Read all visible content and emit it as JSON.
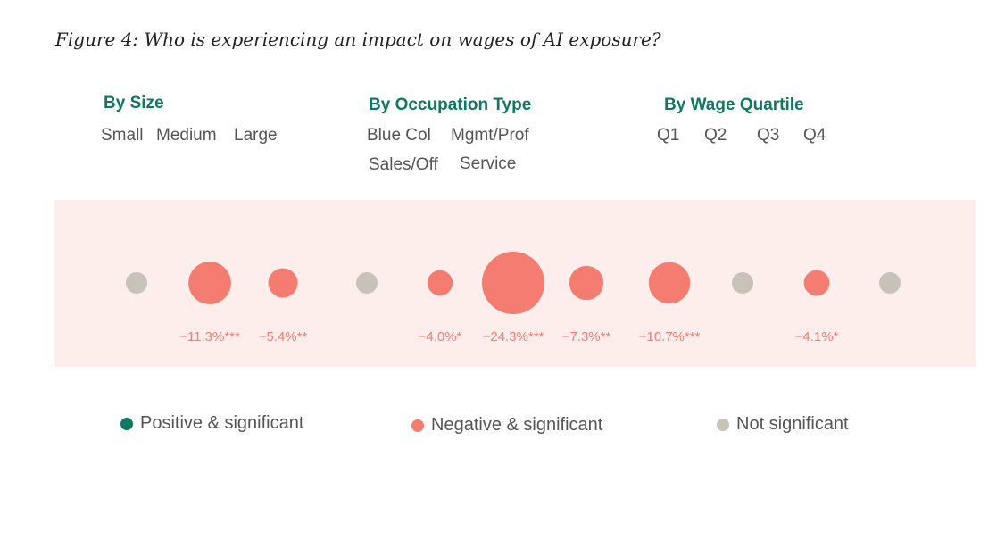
{
  "figure_title": "Figure 4: Who is experiencing an impact on wages of AI exposure?",
  "groups": [
    {
      "title": "By Size",
      "categories": [
        "Small",
        "Medium",
        "Large"
      ]
    },
    {
      "title": "By Occupation Type",
      "categories": [
        "Blue Col",
        "Mgmt/Prof",
        "Sales/Off",
        "Service"
      ]
    },
    {
      "title": "By Wage Quartile",
      "categories": [
        "Q1",
        "Q2",
        "Q3",
        "Q4"
      ]
    }
  ],
  "legend": {
    "positive": "Positive & significant",
    "negative": "Negative & significant",
    "not_significant": "Not significant"
  },
  "colors": {
    "positive": "#0f7a64",
    "negative": "#f47c70",
    "not_significant": "#c9c2b8",
    "band": "#fdeeec",
    "title_green": "#0f7a64"
  },
  "chart_data": {
    "type": "scatter",
    "points": [
      {
        "group": "By Size",
        "category": "Small",
        "status": "not_significant",
        "value": null,
        "label": ""
      },
      {
        "group": "By Size",
        "category": "Medium",
        "status": "negative",
        "value": -11.3,
        "label": "−11.3%***"
      },
      {
        "group": "By Size",
        "category": "Large",
        "status": "negative",
        "value": -5.4,
        "label": "−5.4%**"
      },
      {
        "group": "By Occupation Type",
        "category": "Blue Col",
        "status": "not_significant",
        "value": null,
        "label": ""
      },
      {
        "group": "By Occupation Type",
        "category": "Mgmt/Prof",
        "status": "negative",
        "value": -4.0,
        "label": "−4.0%*"
      },
      {
        "group": "By Occupation Type",
        "category": "Sales/Off",
        "status": "negative",
        "value": -24.3,
        "label": "−24.3%***"
      },
      {
        "group": "By Occupation Type",
        "category": "Service",
        "status": "negative",
        "value": -7.3,
        "label": "−7.3%**"
      },
      {
        "group": "By Wage Quartile",
        "category": "Q1",
        "status": "negative",
        "value": -10.7,
        "label": "−10.7%***"
      },
      {
        "group": "By Wage Quartile",
        "category": "Q2",
        "status": "not_significant",
        "value": null,
        "label": ""
      },
      {
        "group": "By Wage Quartile",
        "category": "Q3",
        "status": "negative",
        "value": -4.1,
        "label": "−4.1%*"
      },
      {
        "group": "By Wage Quartile",
        "category": "Q4",
        "status": "not_significant",
        "value": null,
        "label": ""
      }
    ],
    "legend_placement": "bottom"
  }
}
